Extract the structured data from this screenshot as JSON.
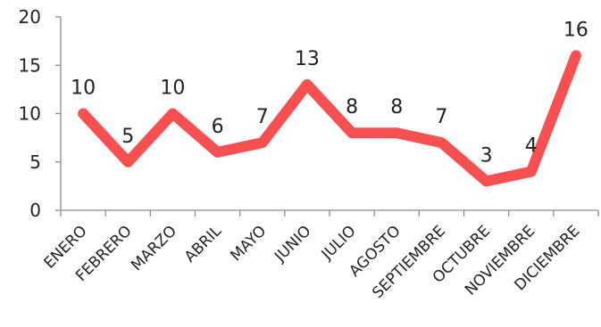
{
  "chart_data": {
    "type": "line",
    "categories": [
      "ENERO",
      "FEBRERO",
      "MARZO",
      "ABRIL",
      "MAYO",
      "JUNIO",
      "JULIO",
      "AGOSTO",
      "SEPTIEMBRE",
      "OCTUBRE",
      "NOVIEMBRE",
      "DICIEMBRE"
    ],
    "values": [
      10,
      5,
      10,
      6,
      7,
      13,
      8,
      8,
      7,
      3,
      4,
      16
    ],
    "title": "",
    "xlabel": "",
    "ylabel": "",
    "ylim": [
      0,
      20
    ],
    "yticks": [
      "0",
      "5",
      "10",
      "15",
      "20"
    ],
    "grid": false,
    "legend": "none",
    "line_color": "#f85050",
    "data_labels": true
  }
}
